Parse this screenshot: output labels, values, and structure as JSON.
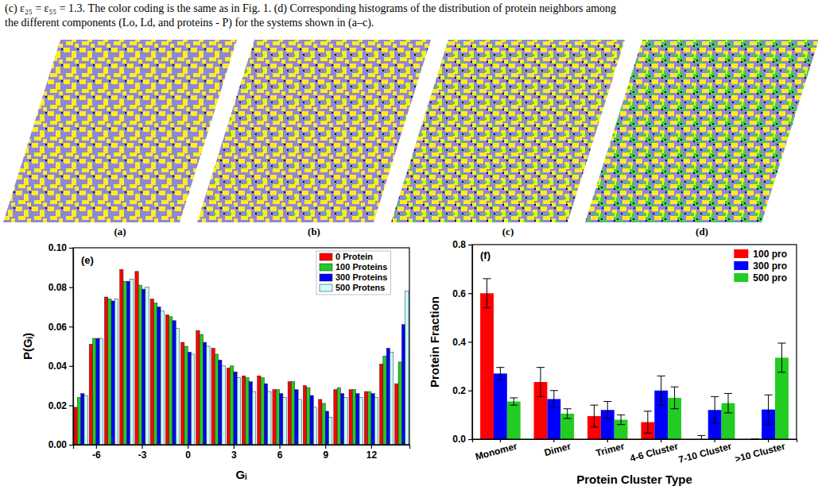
{
  "caption": [
    "(c) ε₂₅ = ε₅₅ = 1.3. The color coding is the same as in Fig. 1. (d) Corresponding histograms of the distribution of protein neighbors among",
    "the different components (Lo, Ld, and proteins - P) for the systems shown in (a–c)."
  ],
  "snapshot_labels": [
    "(a)",
    "(b)",
    "(c)",
    "(d)"
  ],
  "chart_data": [
    {
      "type": "bar",
      "title": "(e)",
      "x_label": "Gᵢ",
      "y_label": "P(Gᵢ)",
      "x": [
        -7,
        -6,
        -5,
        -4,
        -3,
        -2,
        -1,
        0,
        1,
        2,
        3,
        4,
        5,
        6,
        7,
        8,
        9,
        10,
        11,
        12,
        13,
        14
      ],
      "series": [
        {
          "name": "0 Protein",
          "color": "#ff0000",
          "values": [
            0.019,
            0.051,
            0.075,
            0.089,
            0.088,
            0.074,
            0.066,
            0.052,
            0.058,
            0.049,
            0.039,
            0.035,
            0.035,
            0.028,
            0.032,
            0.03,
            0.023,
            0.028,
            0.028,
            0.027,
            0.041,
            0.031
          ]
        },
        {
          "name": "100 Proteins",
          "color": "#22cc22",
          "values": [
            0.024,
            0.054,
            0.074,
            0.083,
            0.081,
            0.072,
            0.065,
            0.05,
            0.056,
            0.046,
            0.04,
            0.034,
            0.034,
            0.028,
            0.032,
            0.029,
            0.021,
            0.029,
            0.028,
            0.027,
            0.045,
            0.042
          ]
        },
        {
          "name": "300 Proteins",
          "color": "#0000ff",
          "values": [
            0.026,
            0.054,
            0.073,
            0.083,
            0.079,
            0.07,
            0.063,
            0.047,
            0.052,
            0.043,
            0.037,
            0.032,
            0.031,
            0.026,
            0.028,
            0.025,
            0.017,
            0.026,
            0.026,
            0.026,
            0.049,
            0.061
          ]
        },
        {
          "name": "500 Protens",
          "color": "#c8ffff",
          "values": [
            0.025,
            0.054,
            0.074,
            0.084,
            0.08,
            0.068,
            0.059,
            0.046,
            0.05,
            0.04,
            0.034,
            0.027,
            0.027,
            0.024,
            0.023,
            0.019,
            0.014,
            0.024,
            0.024,
            0.024,
            0.047,
            0.078
          ]
        }
      ],
      "xlim": [
        -7.5,
        14.5
      ],
      "xticks": [
        -6,
        -3,
        0,
        3,
        6,
        9,
        12
      ],
      "ylim": [
        0,
        0.1
      ],
      "yticks": [
        {
          "value": 0,
          "label": "0.00"
        },
        {
          "value": 0.02,
          "label": "0.02"
        },
        {
          "value": 0.04,
          "label": "0.04"
        },
        {
          "value": 0.06,
          "label": "0.06"
        },
        {
          "value": 0.08,
          "label": "0.08"
        },
        {
          "value": 0.1,
          "label": "0.10"
        }
      ],
      "legend": "top-right",
      "grid": false
    },
    {
      "type": "bar",
      "title": "(f)",
      "x_label": "Protein Cluster Type",
      "y_label": "Protein Fraction",
      "categories": [
        "Monomer",
        "Dimer",
        "Trimer",
        "4-6 Cluster",
        "7-10 Cluster",
        ">10 Cluster"
      ],
      "series": [
        {
          "name": "100 pro",
          "color": "#ff0000",
          "values": [
            0.6,
            0.235,
            0.095,
            0.07,
            0.0,
            0.0
          ],
          "errors": [
            0.06,
            0.06,
            0.045,
            0.045,
            0.015,
            0.0
          ]
        },
        {
          "name": "300 pro",
          "color": "#0000ff",
          "values": [
            0.27,
            0.165,
            0.12,
            0.2,
            0.12,
            0.122
          ],
          "errors": [
            0.025,
            0.035,
            0.035,
            0.06,
            0.055,
            0.06
          ]
        },
        {
          "name": "500 pro",
          "color": "#22cc22",
          "values": [
            0.155,
            0.105,
            0.08,
            0.17,
            0.148,
            0.335
          ],
          "errors": [
            0.015,
            0.02,
            0.02,
            0.045,
            0.04,
            0.06
          ]
        }
      ],
      "ylim": [
        0,
        0.8
      ],
      "yticks": [
        {
          "value": 0,
          "label": "0.0"
        },
        {
          "value": 0.2,
          "label": "0.2"
        },
        {
          "value": 0.4,
          "label": "0.4"
        },
        {
          "value": 0.6,
          "label": "0.6"
        },
        {
          "value": 0.8,
          "label": "0.8"
        }
      ],
      "legend": "top-right",
      "grid": false
    }
  ]
}
